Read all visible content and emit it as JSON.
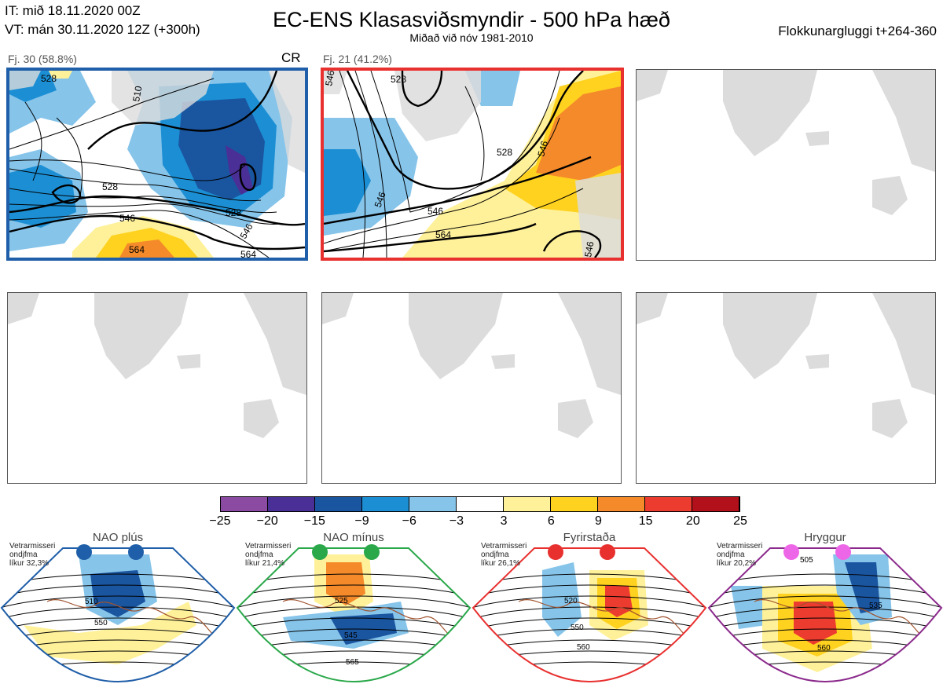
{
  "header": {
    "it_line": "IT: mið 18.11.2020 00Z",
    "vt_line": "VT: mán 30.11.2020 12Z  (+300h)",
    "title": "EC-ENS Klasasviðsmyndir - 500 hPa hæð",
    "subtitle": "Miðað við nóv 1981-2010",
    "window": "Flokkunargluggi t+264-360"
  },
  "panels": [
    {
      "label": "Fj. 30 (58.8%)",
      "tag": "CR",
      "border_color": "#1f5ea8",
      "contours": [
        "528",
        "510",
        "528",
        "546",
        "528",
        "546",
        "564",
        "564"
      ]
    },
    {
      "label": "Fj. 21 (41.2%)",
      "tag": "",
      "border_color": "#e8302f",
      "contours": [
        "546",
        "528",
        "546",
        "564",
        "546",
        "546",
        "528",
        "546"
      ]
    },
    {
      "label": "",
      "tag": "",
      "border_color": ""
    },
    {
      "label": "",
      "tag": "",
      "border_color": ""
    },
    {
      "label": "",
      "tag": "",
      "border_color": ""
    },
    {
      "label": "",
      "tag": "",
      "border_color": ""
    }
  ],
  "colorbar": {
    "ticks": [
      "−25",
      "−20",
      "−15",
      "−9",
      "−6",
      "−3",
      "3",
      "6",
      "9",
      "15",
      "20",
      "25"
    ],
    "colors": [
      "#8b4ba2",
      "#4a2f96",
      "#1a55a0",
      "#1c8fd4",
      "#86c4ea",
      "#ffffff",
      "#fff19a",
      "#ffd21f",
      "#f48a2a",
      "#ec3b2f",
      "#b2111c"
    ]
  },
  "regimes": [
    {
      "title": "NAO plús",
      "note": [
        "Vetrarmisseri",
        "ondjfma",
        "líkur 32,3%"
      ],
      "color": "#1f5ea8",
      "dot_color": "#1f5ea8",
      "contours": [
        "510",
        "550"
      ]
    },
    {
      "title": "NAO mínus",
      "note": [
        "Vetrarmisseri",
        "ondjfma",
        "líkur 21,4%"
      ],
      "color": "#2aa84a",
      "dot_color": "#2aa84a",
      "contours": [
        "525",
        "545",
        "565"
      ]
    },
    {
      "title": "Fyrirstaða",
      "note": [
        "Vetrarmisseri",
        "ondjfma",
        "líkur 26,1%"
      ],
      "color": "#e8302f",
      "dot_color": "#e8302f",
      "contours": [
        "520",
        "550",
        "560"
      ]
    },
    {
      "title": "Hryggur",
      "note": [
        "Vetrarmisseri",
        "ondjfma",
        "líkur 20,2%"
      ],
      "color": "#8b2a8c",
      "dot_color": "#ee66e8",
      "contours": [
        "505",
        "535",
        "560"
      ]
    }
  ],
  "icons": {
    "land": "land-mask",
    "sea": "sea-background"
  }
}
